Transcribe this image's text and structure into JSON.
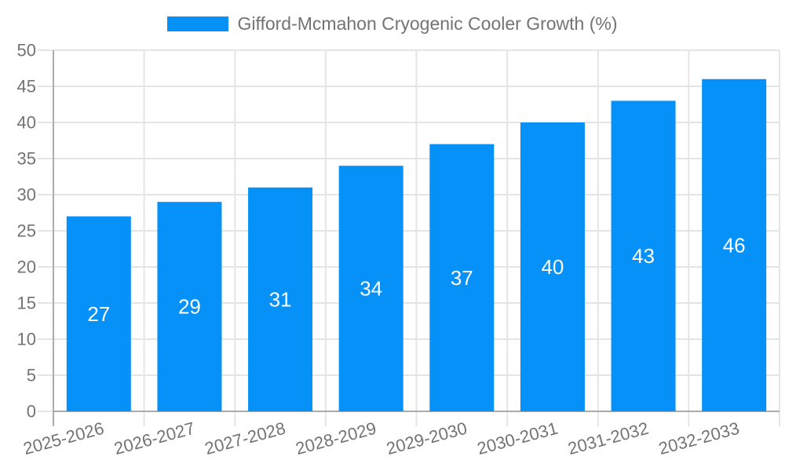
{
  "chart_data": {
    "type": "bar",
    "title": "",
    "xlabel": "",
    "ylabel": "",
    "categories": [
      "2025-2026",
      "2026-2027",
      "2027-2028",
      "2028-2029",
      "2029-2030",
      "2030-2031",
      "2031-2032",
      "2032-2033"
    ],
    "series": [
      {
        "name": "Gifford-Mcmahon Cryogenic Cooler Growth (%)",
        "values": [
          27,
          29,
          31,
          34,
          37,
          40,
          43,
          46
        ],
        "color": "#0591f8",
        "value_label_color": "#ffffff"
      }
    ],
    "legend": {
      "position": "top",
      "entries": [
        {
          "label": "Gifford-Mcmahon Cryogenic Cooler Growth (%)",
          "color": "#0591f8"
        }
      ]
    },
    "ylim": [
      0,
      50
    ],
    "ytick_step": 5,
    "ytick_labels": [
      "0",
      "5",
      "10",
      "15",
      "20",
      "25",
      "30",
      "35",
      "40",
      "45",
      "50"
    ],
    "grid": {
      "horizontal": true,
      "vertical": true,
      "color": "#e5e5e5"
    },
    "axis_color": "#ababab",
    "tick_label_color": "#737373",
    "x_label_rotation_deg": -15
  }
}
